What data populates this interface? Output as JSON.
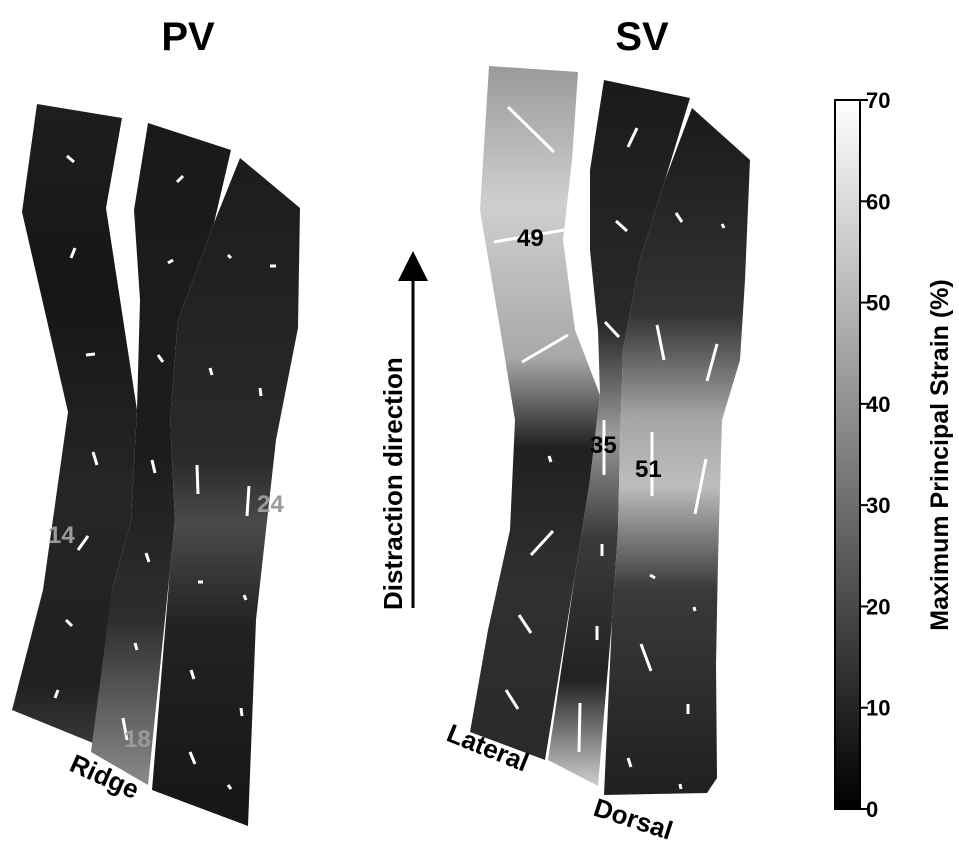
{
  "chart_data": {
    "type": "heatmap",
    "panels": [
      {
        "title": "PV",
        "strips": 3,
        "labels": [
          "Ridge"
        ],
        "annotations": [
          {
            "value": "14",
            "color": "#9a9a9a"
          },
          {
            "value": "18",
            "color": "#9a9a9a"
          },
          {
            "value": "24",
            "color": "#9a9a9a"
          }
        ]
      },
      {
        "title": "SV",
        "strips": 3,
        "labels": [
          "Lateral",
          "Dorsal"
        ],
        "annotations": [
          {
            "value": "49",
            "color": "#000000"
          },
          {
            "value": "35",
            "color": "#000000"
          },
          {
            "value": "51",
            "color": "#000000"
          }
        ]
      }
    ],
    "arrow_label": "Distraction direction",
    "colorbar": {
      "label": "Maximum Principal Strain (%)",
      "range": [
        0,
        70
      ],
      "ticks": [
        "0",
        "10",
        "20",
        "30",
        "40",
        "50",
        "60",
        "70"
      ],
      "colors": {
        "low": "#000000",
        "high": "#ffffff"
      }
    }
  }
}
